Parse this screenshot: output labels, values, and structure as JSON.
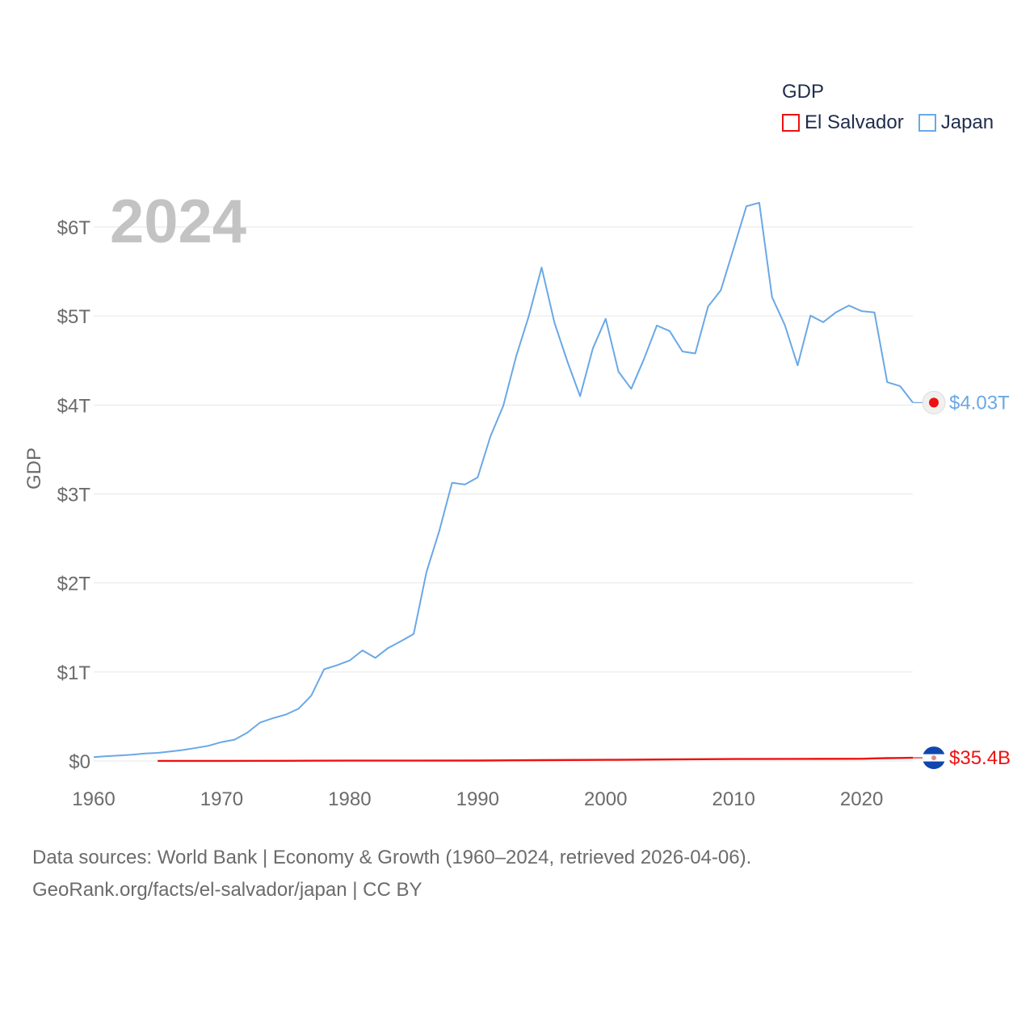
{
  "chart_data": {
    "type": "line",
    "year_label": "2024",
    "ylabel": "GDP",
    "xlabel": "",
    "xlim": [
      1960,
      2024
    ],
    "ylim": [
      0,
      6.5
    ],
    "y_unit": "trillion USD",
    "y_ticks": [
      {
        "value": 0,
        "label": "$0"
      },
      {
        "value": 1,
        "label": "$1T"
      },
      {
        "value": 2,
        "label": "$2T"
      },
      {
        "value": 3,
        "label": "$3T"
      },
      {
        "value": 4,
        "label": "$4T"
      },
      {
        "value": 5,
        "label": "$5T"
      },
      {
        "value": 6,
        "label": "$6T"
      }
    ],
    "x_ticks": [
      {
        "value": 1960,
        "label": "1960"
      },
      {
        "value": 1970,
        "label": "1970"
      },
      {
        "value": 1980,
        "label": "1980"
      },
      {
        "value": 1990,
        "label": "1990"
      },
      {
        "value": 2000,
        "label": "2000"
      },
      {
        "value": 2010,
        "label": "2010"
      },
      {
        "value": 2020,
        "label": "2020"
      }
    ],
    "series": [
      {
        "name": "Japan",
        "color": "#6aa8e6",
        "end_label": "$4.03T",
        "x": [
          1960,
          1961,
          1962,
          1963,
          1964,
          1965,
          1966,
          1967,
          1968,
          1969,
          1970,
          1971,
          1972,
          1973,
          1974,
          1975,
          1976,
          1977,
          1978,
          1979,
          1980,
          1981,
          1982,
          1983,
          1984,
          1985,
          1986,
          1987,
          1988,
          1989,
          1990,
          1991,
          1992,
          1993,
          1994,
          1995,
          1996,
          1997,
          1998,
          1999,
          2000,
          2001,
          2002,
          2003,
          2004,
          2005,
          2006,
          2007,
          2008,
          2009,
          2010,
          2011,
          2012,
          2013,
          2014,
          2015,
          2016,
          2017,
          2018,
          2019,
          2020,
          2021,
          2022,
          2023,
          2024
        ],
        "values": [
          0.044,
          0.054,
          0.061,
          0.071,
          0.084,
          0.091,
          0.106,
          0.123,
          0.147,
          0.172,
          0.212,
          0.24,
          0.318,
          0.432,
          0.48,
          0.521,
          0.586,
          0.733,
          1.03,
          1.075,
          1.129,
          1.243,
          1.158,
          1.269,
          1.345,
          1.427,
          2.121,
          2.585,
          3.126,
          3.106,
          3.186,
          3.649,
          3.99,
          4.541,
          5.002,
          5.545,
          4.923,
          4.493,
          4.098,
          4.636,
          4.968,
          4.375,
          4.182,
          4.519,
          4.893,
          4.831,
          4.601,
          4.579,
          5.106,
          5.289,
          5.759,
          6.233,
          6.272,
          5.212,
          4.897,
          4.445,
          5.004,
          4.931,
          5.041,
          5.118,
          5.055,
          5.04,
          4.256,
          4.213,
          4.027
        ]
      },
      {
        "name": "El Salvador",
        "color": "#ee1111",
        "end_label": "$35.4B",
        "x": [
          1965,
          1970,
          1975,
          1980,
          1985,
          1990,
          1995,
          2000,
          2005,
          2010,
          2015,
          2020,
          2021,
          2022,
          2023,
          2024
        ],
        "values": [
          0.0008,
          0.001,
          0.0019,
          0.0036,
          0.0039,
          0.0048,
          0.0095,
          0.0131,
          0.017,
          0.0214,
          0.0234,
          0.0248,
          0.0289,
          0.0315,
          0.034,
          0.0354
        ]
      }
    ]
  },
  "legend": {
    "title": "GDP",
    "items": [
      {
        "name": "El Salvador",
        "color": "#ee1111"
      },
      {
        "name": "Japan",
        "color": "#6aa8e6"
      }
    ]
  },
  "footer": {
    "line1": "Data sources: World Bank | Economy & Growth (1960–2024, retrieved 2026-04-06).",
    "line2": "GeoRank.org/facts/el-salvador/japan | CC BY"
  }
}
